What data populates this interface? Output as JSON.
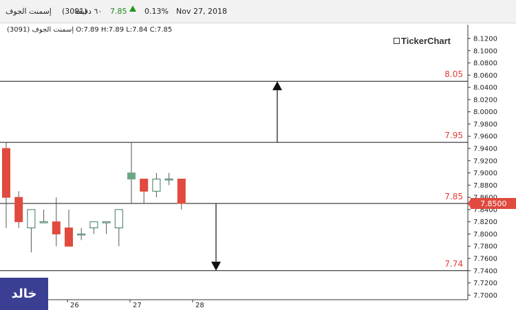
{
  "header": {
    "name": "إسمنت الجوف",
    "symbol": "(3091)",
    "interval": "٦٠ دقيقة",
    "price": "7.85",
    "change": "0.13%",
    "date": "Nov 27, 2018"
  },
  "ohlc_label": "إسمنت الجوف (3091)  O:7.89  H:7.89  L:7.84  C:7.85",
  "brand": "TickerChart",
  "badge": "خالد",
  "colors": {
    "up": "#6aa88a",
    "down": "#e04a3f",
    "level_label": "#e53935",
    "current_price_bg": "#e04a3f"
  },
  "chart_data": {
    "type": "candlestick",
    "title": "",
    "y_ticks": [
      "8.1200",
      "8.1000",
      "8.0800",
      "8.0600",
      "8.0400",
      "8.0200",
      "8.0000",
      "7.9800",
      "7.9600",
      "7.9400",
      "7.9200",
      "7.9000",
      "7.8800",
      "7.8600",
      "7.8400",
      "7.8200",
      "7.8000",
      "7.7800",
      "7.7600",
      "7.7400",
      "7.7200",
      "7.7000"
    ],
    "ylim": [
      7.6925,
      8.1425
    ],
    "x_ticks": [
      {
        "label": "26",
        "index": 5
      },
      {
        "label": "27",
        "index": 10
      },
      {
        "label": "28",
        "index": 15
      }
    ],
    "candles": [
      {
        "o": 7.94,
        "h": 7.95,
        "l": 7.81,
        "c": 7.86
      },
      {
        "o": 7.86,
        "h": 7.87,
        "l": 7.81,
        "c": 7.82
      },
      {
        "o": 7.81,
        "h": 7.84,
        "l": 7.77,
        "c": 7.84
      },
      {
        "o": 7.82,
        "h": 7.84,
        "l": 7.82,
        "c": 7.82
      },
      {
        "o": 7.82,
        "h": 7.86,
        "l": 7.78,
        "c": 7.8
      },
      {
        "o": 7.81,
        "h": 7.84,
        "l": 7.78,
        "c": 7.78
      },
      {
        "o": 7.8,
        "h": 7.81,
        "l": 7.79,
        "c": 7.8
      },
      {
        "o": 7.81,
        "h": 7.82,
        "l": 7.8,
        "c": 7.82
      },
      {
        "o": 7.82,
        "h": 7.82,
        "l": 7.8,
        "c": 7.82
      },
      {
        "o": 7.81,
        "h": 7.84,
        "l": 7.78,
        "c": 7.84
      },
      {
        "o": 7.89,
        "h": 7.95,
        "l": 7.85,
        "c": 7.9
      },
      {
        "o": 7.89,
        "h": 7.89,
        "l": 7.85,
        "c": 7.87
      },
      {
        "o": 7.87,
        "h": 7.9,
        "l": 7.86,
        "c": 7.89
      },
      {
        "o": 7.89,
        "h": 7.9,
        "l": 7.88,
        "c": 7.89
      },
      {
        "o": 7.89,
        "h": 7.89,
        "l": 7.84,
        "c": 7.85
      }
    ],
    "levels": [
      {
        "value": 8.05,
        "label": "8.05"
      },
      {
        "value": 7.95,
        "label": "7.95"
      },
      {
        "value": 7.85,
        "label": "7.85"
      },
      {
        "value": 7.74,
        "label": "7.74"
      }
    ],
    "arrows": [
      {
        "from": 7.95,
        "to": 8.05
      },
      {
        "from": 7.85,
        "to": 7.74
      }
    ],
    "current_price": {
      "value": 7.85,
      "label": "7.8500"
    }
  }
}
